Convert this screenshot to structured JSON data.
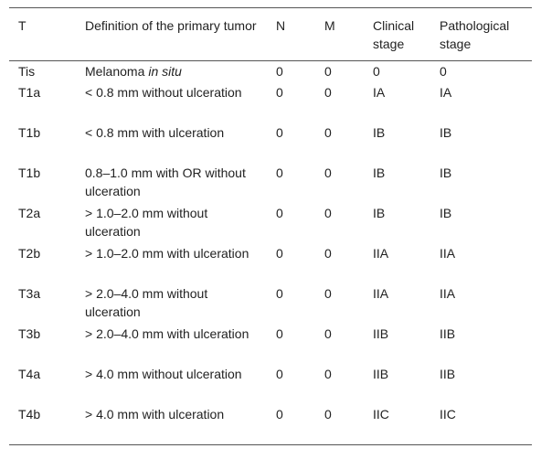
{
  "table": {
    "header": [
      "T",
      "Definition of the primary tumor",
      "N",
      "M",
      "Clinical stage",
      "Pathological stage"
    ],
    "rows": [
      [
        "Tis",
        {
          "text": "Melanoma",
          "italic": "in situ"
        },
        "0",
        "0",
        "0",
        "0"
      ],
      [
        "T1a",
        "< 0.8 mm without ulceration",
        "0",
        "0",
        "IA",
        "IA"
      ],
      [
        "T1b",
        "< 0.8 mm with ulceration",
        "0",
        "0",
        "IB",
        "IB"
      ],
      [
        "T1b",
        "0.8–1.0 mm with OR without ulceration",
        "0",
        "0",
        "IB",
        "IB"
      ],
      [
        "T2a",
        "> 1.0–2.0 mm without ulceration",
        "0",
        "0",
        "IB",
        "IB"
      ],
      [
        "T2b",
        "> 1.0–2.0 mm with ulceration",
        "0",
        "0",
        "IIA",
        "IIA"
      ],
      [
        "T3a",
        "> 2.0–4.0 mm without ulceration",
        "0",
        "0",
        "IIA",
        "IIA"
      ],
      [
        "T3b",
        "> 2.0–4.0 mm with ulceration",
        "0",
        "0",
        "IIB",
        "IIB"
      ],
      [
        "T4a",
        "> 4.0 mm without ulceration",
        "0",
        "0",
        "IIB",
        "IIB"
      ],
      [
        "T4b",
        "> 4.0 mm with ulceration",
        "0",
        "0",
        "IIC",
        "IIC"
      ]
    ]
  }
}
